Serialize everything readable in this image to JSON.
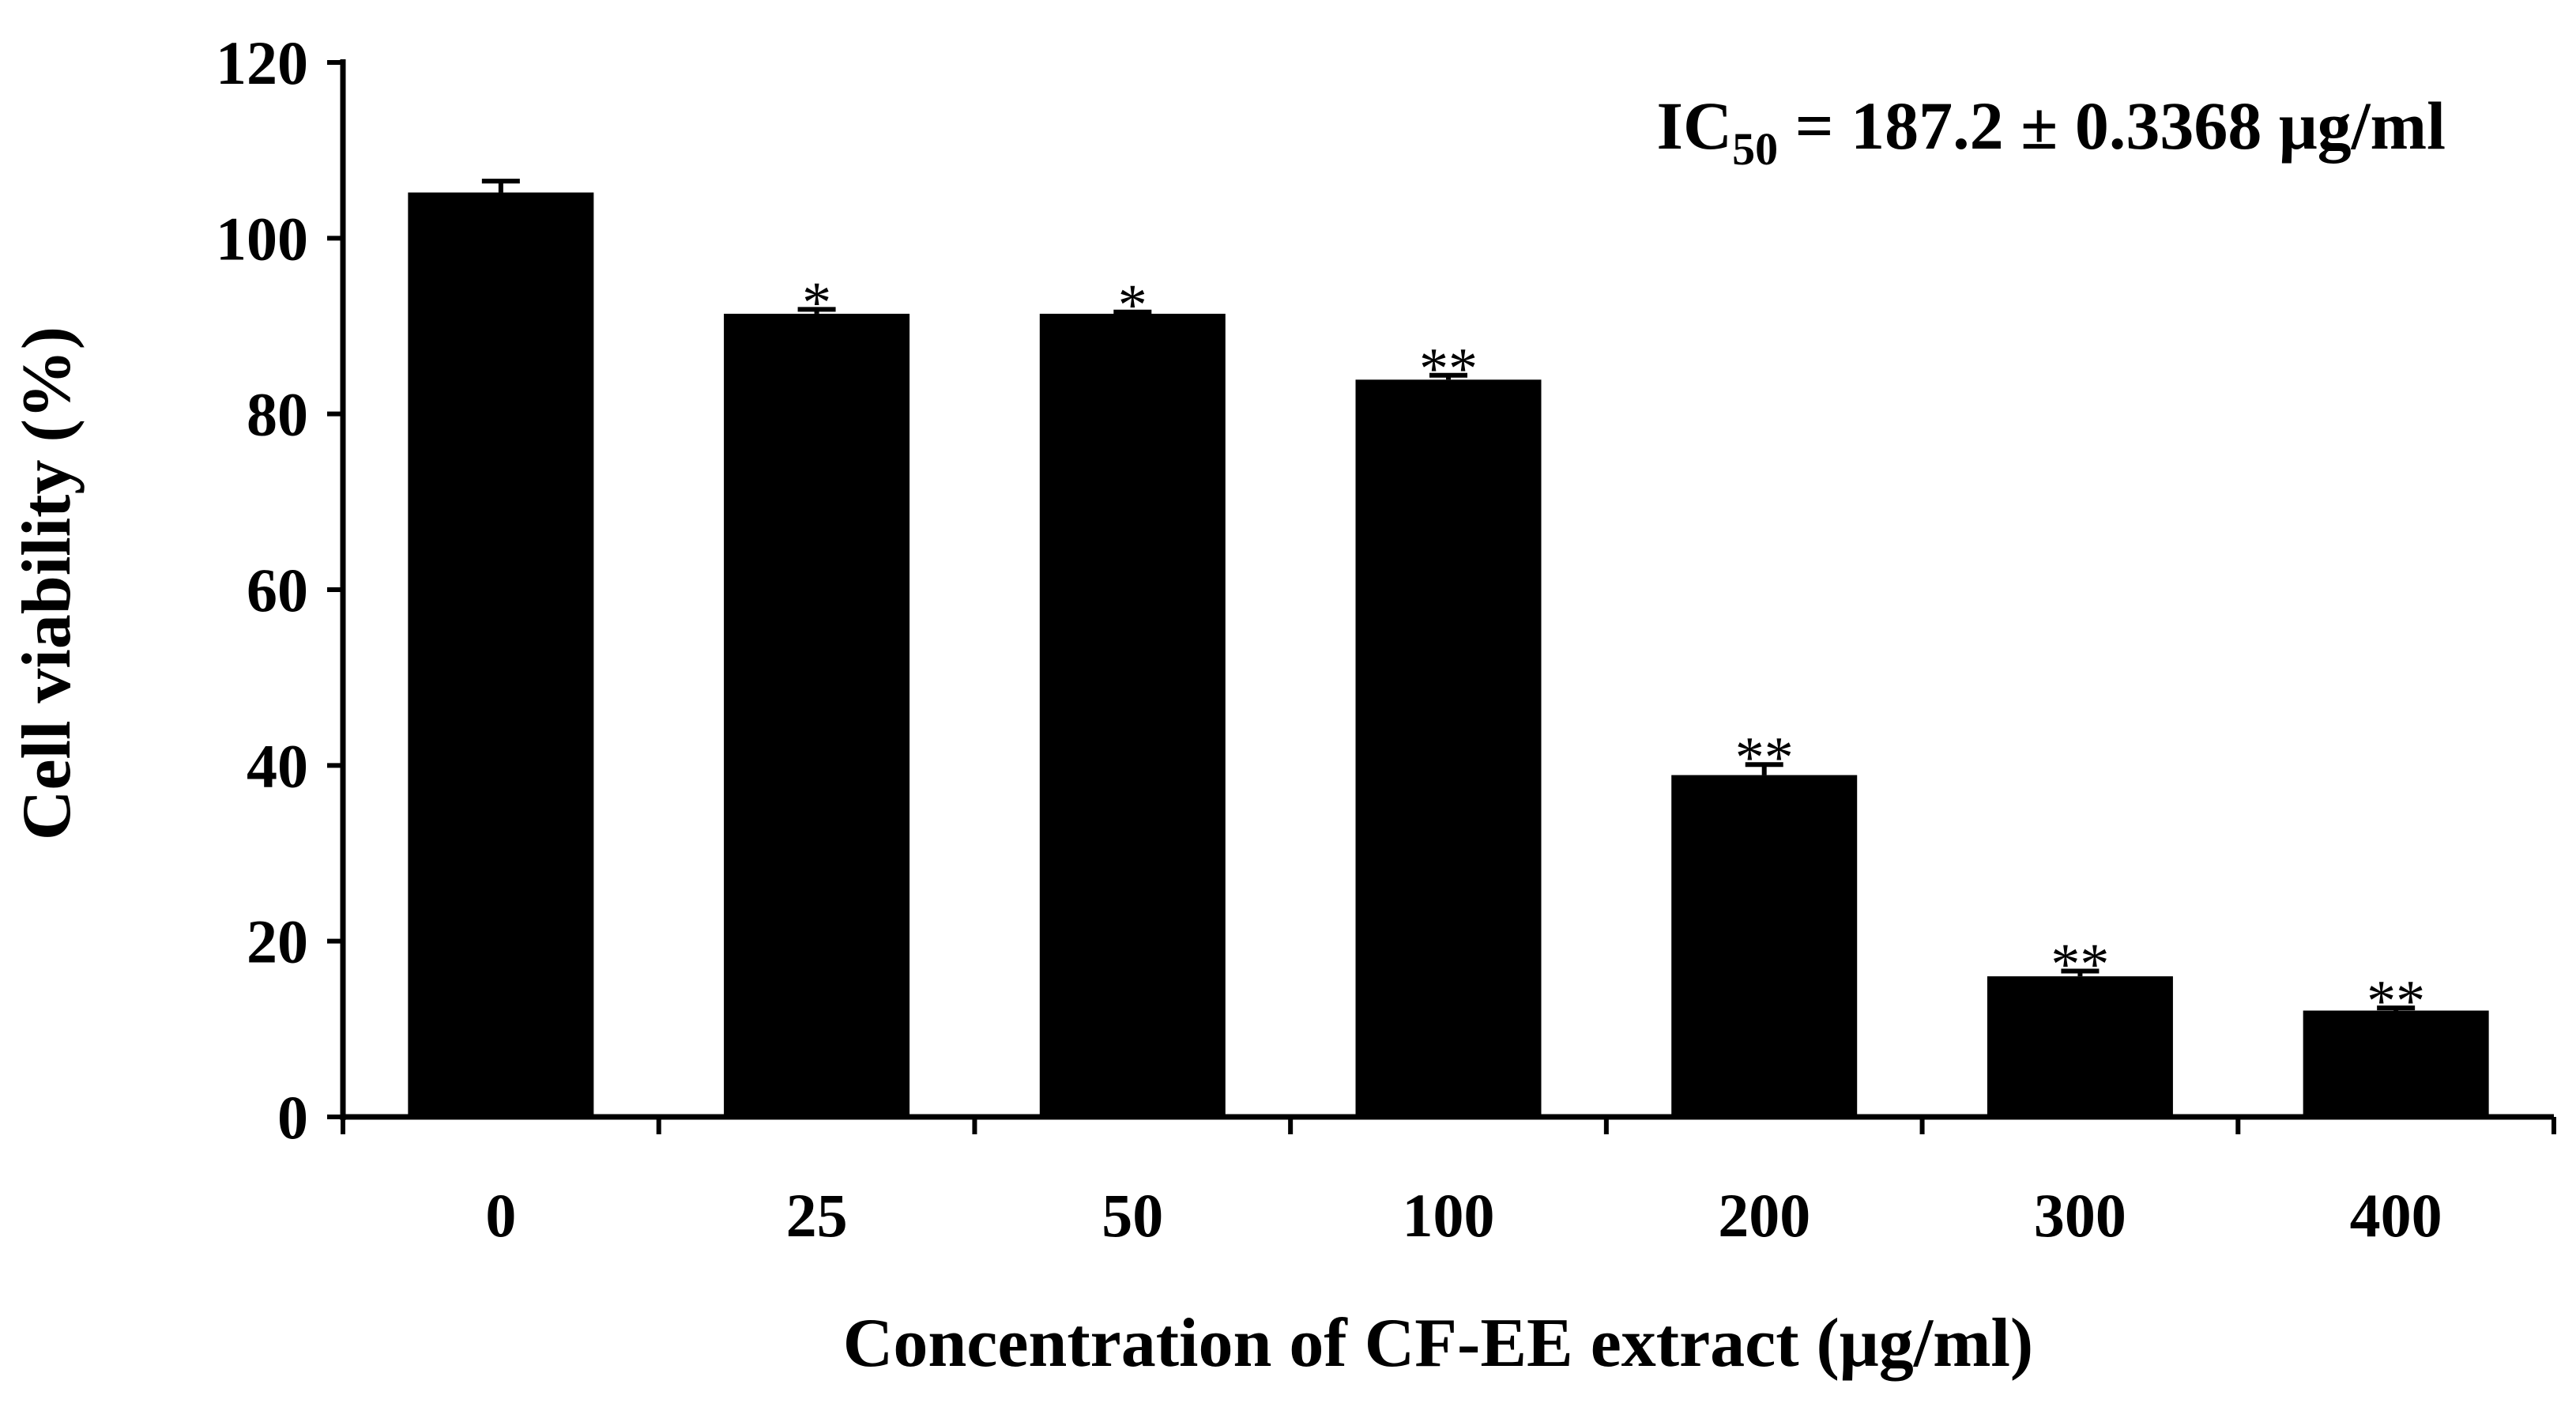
{
  "chart_data": {
    "type": "bar",
    "categories": [
      "0",
      "25",
      "50",
      "100",
      "200",
      "300",
      "400"
    ],
    "values": [
      105.2,
      91.4,
      91.4,
      83.9,
      38.9,
      16.0,
      12.1
    ],
    "errors": [
      1.3,
      0.5,
      0.2,
      0.5,
      1.2,
      0.6,
      0.3
    ],
    "significance": [
      "",
      "*",
      "*",
      "**",
      "**",
      "**",
      "**"
    ],
    "xlabel": "Concentration of CF-EE extract (μg/ml)",
    "ylabel": "Cell viability (%)",
    "ylim": [
      0,
      120
    ],
    "yticks": [
      "0",
      "20",
      "40",
      "60",
      "80",
      "100",
      "120"
    ],
    "annotation": {
      "prefix": "IC",
      "subscript": "50",
      "suffix": " = 187.2 ± 0.3368 μg/ml"
    },
    "bar_color": "#000000",
    "grid": false,
    "legend": "none"
  }
}
